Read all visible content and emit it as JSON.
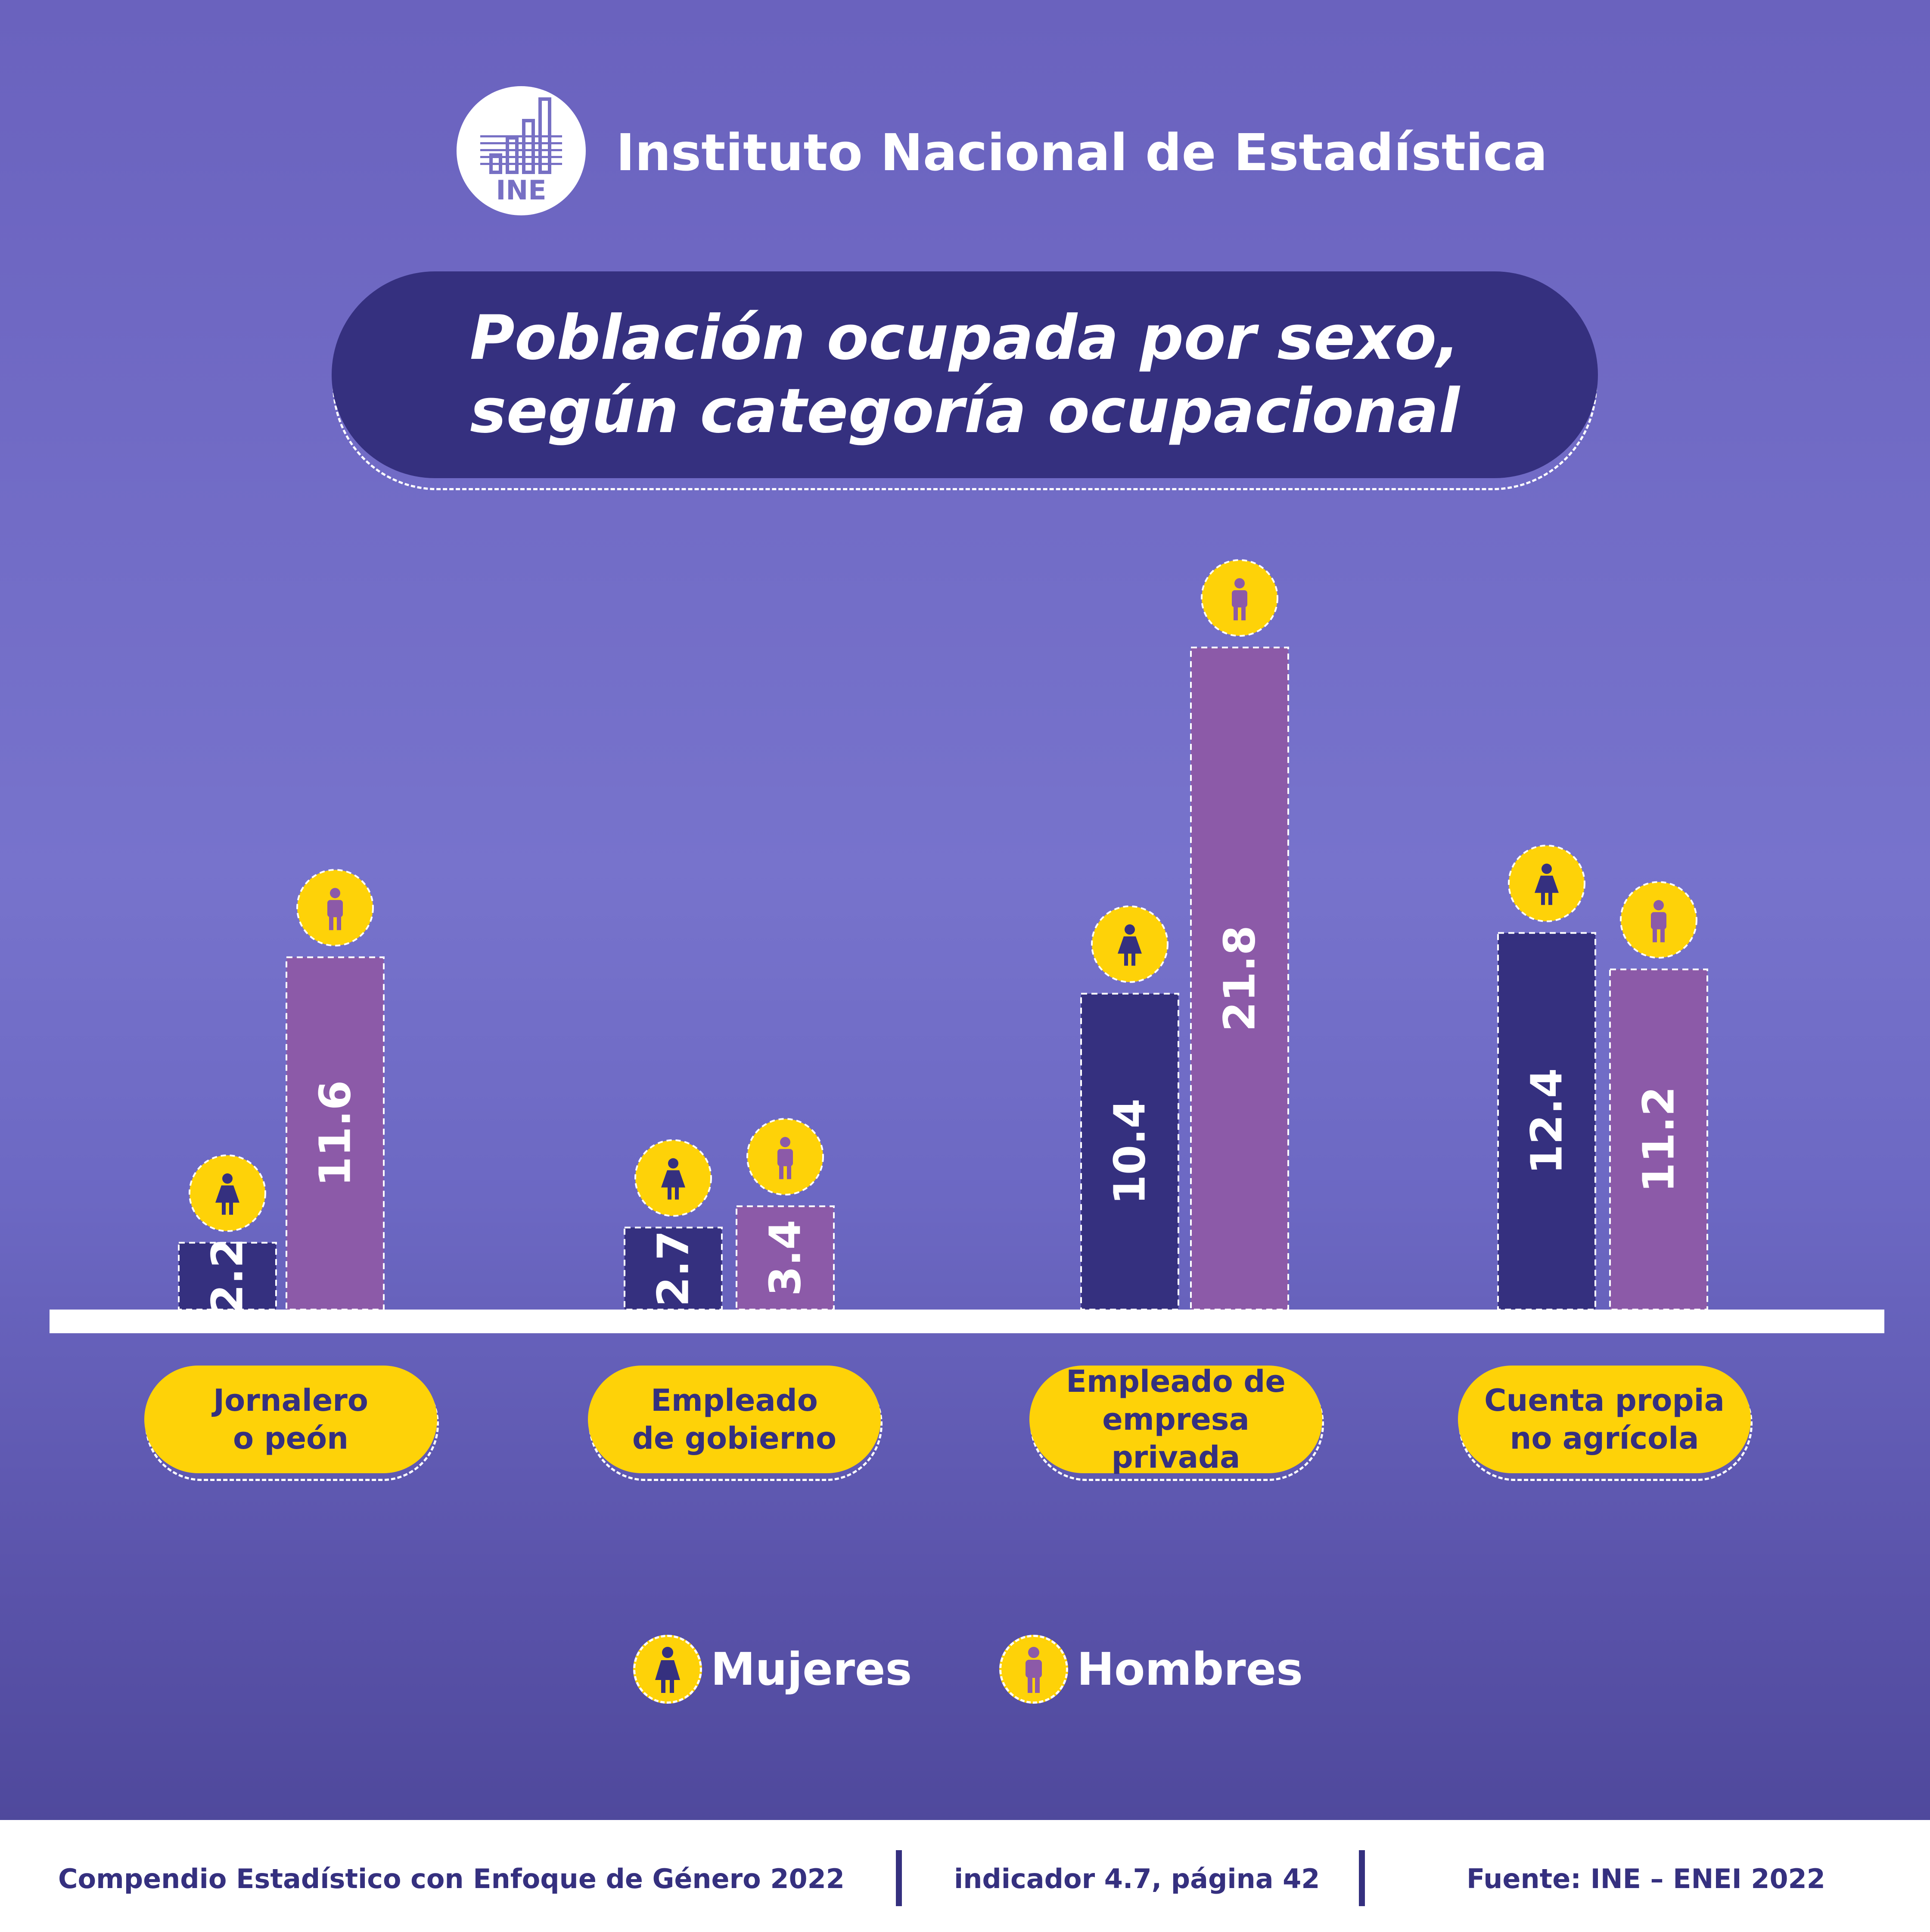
{
  "header": {
    "logo_text": "INE",
    "org_name": "Instituto Nacional de Estadística"
  },
  "title_lines": [
    "Población ocupada por sexo,",
    "según categoría ocupacional"
  ],
  "colors": {
    "mujeres": "#35307f",
    "hombres": "#8c5aa8",
    "badge": "#fed208",
    "baseline": "#ffffff"
  },
  "icons": {
    "mujeres": "woman-icon",
    "hombres": "man-icon",
    "logo": "bar-chart-logo-icon"
  },
  "chart_data": {
    "type": "bar",
    "categories": [
      "Jornalero o peón",
      "Empleado de gobierno",
      "Empleado de empresa privada",
      "Cuenta propia no agrícola"
    ],
    "category_lines": [
      [
        "Jornalero",
        "o peón"
      ],
      [
        "Empleado",
        "de gobierno"
      ],
      [
        "Empleado de",
        "empresa privada"
      ],
      [
        "Cuenta propia",
        "no agrícola"
      ]
    ],
    "series": [
      {
        "name": "Mujeres",
        "values": [
          2.2,
          2.7,
          10.4,
          12.4
        ],
        "labels": [
          "2.2",
          "2.7",
          "10.4",
          "12.4"
        ]
      },
      {
        "name": "Hombres",
        "values": [
          11.6,
          3.4,
          21.8,
          11.2
        ],
        "labels": [
          "11.6",
          "3.4",
          "21.8",
          "11.2"
        ]
      }
    ],
    "ylim": [
      0,
      22
    ],
    "grid": false,
    "legend_position": "bottom-center"
  },
  "legend": [
    {
      "label": "Mujeres",
      "icon": "woman-icon"
    },
    {
      "label": "Hombres",
      "icon": "man-icon"
    }
  ],
  "footer": {
    "left": "Compendio Estadístico con Enfoque de Género 2022",
    "middle": "indicador 4.7, página 42",
    "right": "Fuente: INE – ENEI 2022"
  }
}
